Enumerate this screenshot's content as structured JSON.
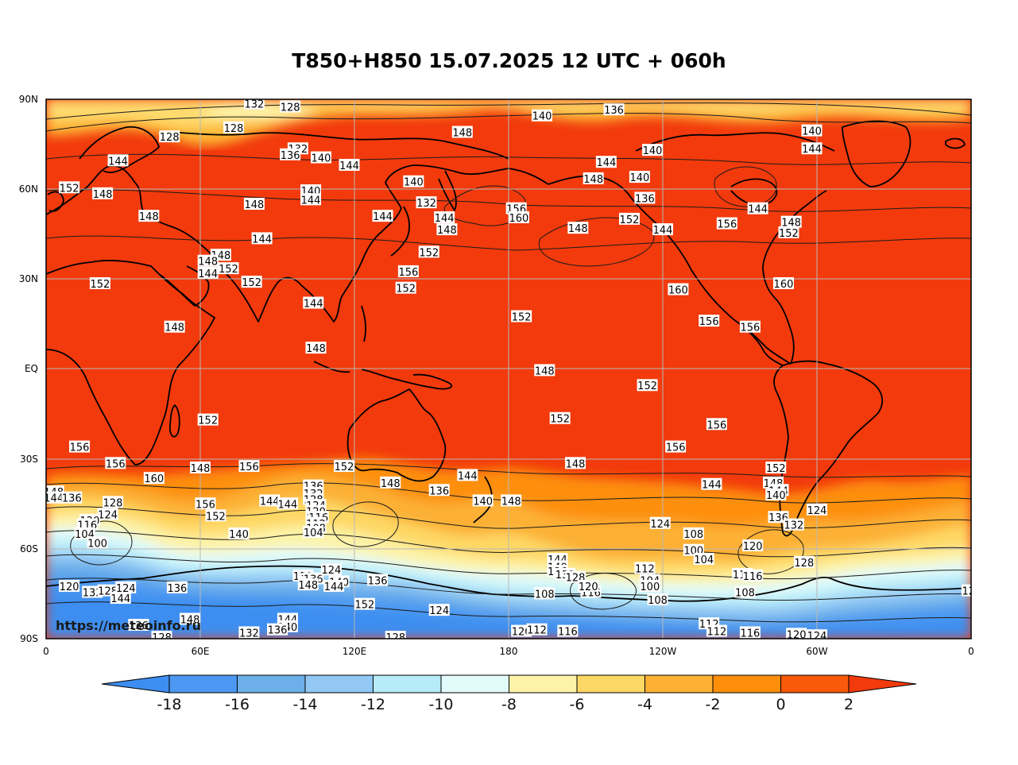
{
  "title": "T850+H850 15.07.2025 12 UTC + 060h",
  "watermark": "https://meteoinfo.ru",
  "map": {
    "type": "weather-map",
    "projection": "equirectangular",
    "center_longitude": "180",
    "lat_ticks": [
      "90N",
      "60N",
      "30N",
      "EQ",
      "30S",
      "60S",
      "90S"
    ],
    "lon_ticks": [
      "0",
      "60E",
      "120E",
      "180",
      "120W",
      "60W",
      "0"
    ],
    "grid": true,
    "colors": {
      "warm": "#f23a0c",
      "deep_red": "#e02f05",
      "coast": "#000000",
      "grid": "#b8b8b8"
    }
  },
  "colorbar": {
    "ticks": [
      "-18",
      "-16",
      "-14",
      "-12",
      "-10",
      "-8",
      "-6",
      "-4",
      "-2",
      "0",
      "2"
    ],
    "colors": [
      "#3d8ef0",
      "#4c98f2",
      "#6cafe9",
      "#93c8f5",
      "#b7ebf8",
      "#e1fbfb",
      "#fdf3a8",
      "#fed865",
      "#fcb034",
      "#fd8f0b",
      "#f8590a",
      "#f23a0c"
    ]
  },
  "contour_labels": [
    {
      "text": "132",
      "lon": 81,
      "lat": 88.5
    },
    {
      "text": "128",
      "lon": 95,
      "lat": 87.5
    },
    {
      "text": "140",
      "lon": 193,
      "lat": 84.5
    },
    {
      "text": "136",
      "lon": 221,
      "lat": 86.5
    },
    {
      "text": "128",
      "lon": 73,
      "lat": 80.5
    },
    {
      "text": "128",
      "lon": 48,
      "lat": 77.5
    },
    {
      "text": "148",
      "lon": 162,
      "lat": 79
    },
    {
      "text": "140",
      "lon": 298,
      "lat": 79.5
    },
    {
      "text": "144",
      "lon": 28,
      "lat": 69.5
    },
    {
      "text": "132",
      "lon": 98,
      "lat": 73.5
    },
    {
      "text": "136",
      "lon": 95,
      "lat": 71.5
    },
    {
      "text": "140",
      "lon": 107,
      "lat": 70.5
    },
    {
      "text": "144",
      "lon": 118,
      "lat": 68
    },
    {
      "text": "140",
      "lon": 236,
      "lat": 73
    },
    {
      "text": "144",
      "lon": 298,
      "lat": 73.5
    },
    {
      "text": "144",
      "lon": 218,
      "lat": 69
    },
    {
      "text": "152",
      "lon": 9,
      "lat": 60.5
    },
    {
      "text": "148",
      "lon": 22,
      "lat": 58.5
    },
    {
      "text": "140",
      "lon": 103,
      "lat": 59.5
    },
    {
      "text": "144",
      "lon": 103,
      "lat": 56.5
    },
    {
      "text": "140",
      "lon": 143,
      "lat": 62.5
    },
    {
      "text": "132",
      "lon": 148,
      "lat": 55.5
    },
    {
      "text": "148",
      "lon": 213,
      "lat": 63.5
    },
    {
      "text": "140",
      "lon": 231,
      "lat": 64
    },
    {
      "text": "136",
      "lon": 233,
      "lat": 57
    },
    {
      "text": "148",
      "lon": 40,
      "lat": 51
    },
    {
      "text": "148",
      "lon": 81,
      "lat": 55
    },
    {
      "text": "144",
      "lon": 131,
      "lat": 51
    },
    {
      "text": "144",
      "lon": 155,
      "lat": 50.5
    },
    {
      "text": "148",
      "lon": 156,
      "lat": 46.5
    },
    {
      "text": "156",
      "lon": 183,
      "lat": 53.5
    },
    {
      "text": "160",
      "lon": 184,
      "lat": 50.5
    },
    {
      "text": "148",
      "lon": 207,
      "lat": 47
    },
    {
      "text": "152",
      "lon": 227,
      "lat": 50
    },
    {
      "text": "144",
      "lon": 240,
      "lat": 46.5
    },
    {
      "text": "156",
      "lon": 265,
      "lat": 48.5
    },
    {
      "text": "144",
      "lon": 277,
      "lat": 53.5
    },
    {
      "text": "148",
      "lon": 290,
      "lat": 49
    },
    {
      "text": "152",
      "lon": 289,
      "lat": 45.5
    },
    {
      "text": "144",
      "lon": 84,
      "lat": 43.5
    },
    {
      "text": "148",
      "lon": 68,
      "lat": 38
    },
    {
      "text": "148",
      "lon": 63,
      "lat": 36
    },
    {
      "text": "144",
      "lon": 63,
      "lat": 32
    },
    {
      "text": "152",
      "lon": 71,
      "lat": 33.5
    },
    {
      "text": "152",
      "lon": 149,
      "lat": 39
    },
    {
      "text": "156",
      "lon": 141,
      "lat": 32.5
    },
    {
      "text": "152",
      "lon": 140,
      "lat": 27
    },
    {
      "text": "152",
      "lon": 21,
      "lat": 28.5
    },
    {
      "text": "152",
      "lon": 80,
      "lat": 29
    },
    {
      "text": "160",
      "lon": 246,
      "lat": 26.5
    },
    {
      "text": "160",
      "lon": 287,
      "lat": 28.5
    },
    {
      "text": "144",
      "lon": 104,
      "lat": 22
    },
    {
      "text": "152",
      "lon": 185,
      "lat": 17.5
    },
    {
      "text": "156",
      "lon": 258,
      "lat": 16
    },
    {
      "text": "156",
      "lon": 274,
      "lat": 14
    },
    {
      "text": "148",
      "lon": 50,
      "lat": 14
    },
    {
      "text": "148",
      "lon": 105,
      "lat": 7
    },
    {
      "text": "148",
      "lon": 194,
      "lat": -0.5
    },
    {
      "text": "152",
      "lon": 234,
      "lat": -5.5
    },
    {
      "text": "152",
      "lon": 200,
      "lat": -16.5
    },
    {
      "text": "152",
      "lon": 63,
      "lat": -17
    },
    {
      "text": "156",
      "lon": 261,
      "lat": -18.5
    },
    {
      "text": "156",
      "lon": 245,
      "lat": -26
    },
    {
      "text": "156",
      "lon": 13,
      "lat": -26
    },
    {
      "text": "156",
      "lon": 27,
      "lat": -31.5
    },
    {
      "text": "148",
      "lon": 60,
      "lat": -33
    },
    {
      "text": "156",
      "lon": 79,
      "lat": -32.5
    },
    {
      "text": "152",
      "lon": 116,
      "lat": -32.5
    },
    {
      "text": "160",
      "lon": 42,
      "lat": -36.5
    },
    {
      "text": "148",
      "lon": 206,
      "lat": -31.5
    },
    {
      "text": "152",
      "lon": 284,
      "lat": -33
    },
    {
      "text": "144",
      "lon": 164,
      "lat": -35.5
    },
    {
      "text": "148",
      "lon": 134,
      "lat": -38
    },
    {
      "text": "136",
      "lon": 153,
      "lat": -40.5
    },
    {
      "text": "148",
      "lon": 181,
      "lat": -44
    },
    {
      "text": "144",
      "lon": 259,
      "lat": -38.5
    },
    {
      "text": "148",
      "lon": 283,
      "lat": -38
    },
    {
      "text": "144",
      "lon": 285,
      "lat": -40.5
    },
    {
      "text": "140",
      "lon": 284,
      "lat": -42
    },
    {
      "text": "148",
      "lon": 3,
      "lat": -41
    },
    {
      "text": "144",
      "lon": 3,
      "lat": -43
    },
    {
      "text": "136",
      "lon": 104,
      "lat": -39
    },
    {
      "text": "132",
      "lon": 104,
      "lat": -41.5
    },
    {
      "text": "128",
      "lon": 104,
      "lat": -43.5
    },
    {
      "text": "124",
      "lon": 105,
      "lat": -45.5
    },
    {
      "text": "120",
      "lon": 105,
      "lat": -47.5
    },
    {
      "text": "116",
      "lon": 106,
      "lat": -49.5
    },
    {
      "text": "112",
      "lon": 105,
      "lat": -51.5
    },
    {
      "text": "108",
      "lon": 105,
      "lat": -53
    },
    {
      "text": "104",
      "lon": 104,
      "lat": -54.5
    },
    {
      "text": "136",
      "lon": 10,
      "lat": -43
    },
    {
      "text": "128",
      "lon": 26,
      "lat": -44.5
    },
    {
      "text": "124",
      "lon": 24,
      "lat": -48.5
    },
    {
      "text": "120",
      "lon": 17,
      "lat": -50.5
    },
    {
      "text": "116",
      "lon": 16,
      "lat": -52
    },
    {
      "text": "104",
      "lon": 15,
      "lat": -55
    },
    {
      "text": "100",
      "lon": 20,
      "lat": -58
    },
    {
      "text": "144",
      "lon": 87,
      "lat": -44
    },
    {
      "text": "144",
      "lon": 94,
      "lat": -45
    },
    {
      "text": "156",
      "lon": 62,
      "lat": -45
    },
    {
      "text": "152",
      "lon": 66,
      "lat": -49
    },
    {
      "text": "140",
      "lon": 75,
      "lat": -55
    },
    {
      "text": "140",
      "lon": 170,
      "lat": -44
    },
    {
      "text": "136",
      "lon": 285,
      "lat": -49.5
    },
    {
      "text": "132",
      "lon": 291,
      "lat": -52
    },
    {
      "text": "124",
      "lon": 300,
      "lat": -47
    },
    {
      "text": "124",
      "lon": 239,
      "lat": -51.5
    },
    {
      "text": "108",
      "lon": 252,
      "lat": -55
    },
    {
      "text": "100",
      "lon": 252,
      "lat": -60.5
    },
    {
      "text": "104",
      "lon": 256,
      "lat": -63.5
    },
    {
      "text": "120",
      "lon": 275,
      "lat": -59
    },
    {
      "text": "112",
      "lon": 271,
      "lat": -68.5
    },
    {
      "text": "116",
      "lon": 275,
      "lat": -69
    },
    {
      "text": "128",
      "lon": 295,
      "lat": -64.5
    },
    {
      "text": "144",
      "lon": 199,
      "lat": -63.5
    },
    {
      "text": "140",
      "lon": 199,
      "lat": -66
    },
    {
      "text": "136",
      "lon": 199,
      "lat": -67.5
    },
    {
      "text": "132",
      "lon": 202,
      "lat": -68.5
    },
    {
      "text": "128",
      "lon": 206,
      "lat": -69.5
    },
    {
      "text": "112",
      "lon": 233,
      "lat": -66.5
    },
    {
      "text": "104",
      "lon": 235,
      "lat": -70.5
    },
    {
      "text": "100",
      "lon": 235,
      "lat": -72.5
    },
    {
      "text": "116",
      "lon": 212,
      "lat": -74.5
    },
    {
      "text": "120",
      "lon": 211,
      "lat": -72.5
    },
    {
      "text": "108",
      "lon": 194,
      "lat": -75
    },
    {
      "text": "108",
      "lon": 238,
      "lat": -77
    },
    {
      "text": "108",
      "lon": 272,
      "lat": -74.5
    },
    {
      "text": "120",
      "lon": 9,
      "lat": -72.5
    },
    {
      "text": "132",
      "lon": 18,
      "lat": -74.5
    },
    {
      "text": "128",
      "lon": 24,
      "lat": -74
    },
    {
      "text": "124",
      "lon": 31,
      "lat": -73
    },
    {
      "text": "144",
      "lon": 29,
      "lat": -76.5
    },
    {
      "text": "136",
      "lon": 51,
      "lat": -73
    },
    {
      "text": "132",
      "lon": 100,
      "lat": -69
    },
    {
      "text": "136",
      "lon": 104,
      "lat": -70
    },
    {
      "text": "124",
      "lon": 111,
      "lat": -67
    },
    {
      "text": "140",
      "lon": 114,
      "lat": -71
    },
    {
      "text": "148",
      "lon": 102,
      "lat": -72
    },
    {
      "text": "144",
      "lon": 112,
      "lat": -72.5
    },
    {
      "text": "136",
      "lon": 129,
      "lat": -70.5
    },
    {
      "text": "152",
      "lon": 124,
      "lat": -78.5
    },
    {
      "text": "124",
      "lon": 153,
      "lat": -80.5
    },
    {
      "text": "148",
      "lon": 56,
      "lat": -83.5
    },
    {
      "text": "144",
      "lon": 94,
      "lat": -83.5
    },
    {
      "text": "140",
      "lon": 94,
      "lat": -86
    },
    {
      "text": "136",
      "lon": 90,
      "lat": -87
    },
    {
      "text": "136",
      "lon": 36,
      "lat": -85.5
    },
    {
      "text": "128",
      "lon": 45,
      "lat": -89.5
    },
    {
      "text": "132",
      "lon": 79,
      "lat": -88
    },
    {
      "text": "128",
      "lon": 136,
      "lat": -89.5
    },
    {
      "text": "120",
      "lon": 185,
      "lat": -87.5
    },
    {
      "text": "112",
      "lon": 191,
      "lat": -87
    },
    {
      "text": "116",
      "lon": 203,
      "lat": -87.5
    },
    {
      "text": "112",
      "lon": 258,
      "lat": -85
    },
    {
      "text": "112",
      "lon": 261,
      "lat": -87.5
    },
    {
      "text": "116",
      "lon": 274,
      "lat": -88
    },
    {
      "text": "120",
      "lon": 292,
      "lat": -88.5
    },
    {
      "text": "124",
      "lon": 300,
      "lat": -89
    },
    {
      "text": "12",
      "lon": 359,
      "lat": -74
    }
  ]
}
